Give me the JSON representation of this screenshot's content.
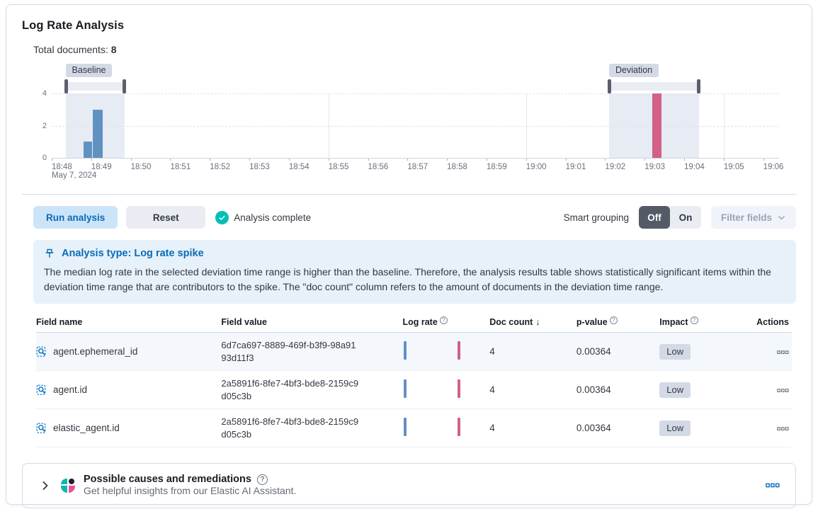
{
  "colors": {
    "accent": "#0071C2",
    "success": "#00BFB3",
    "baseline_bar": "#6092C0",
    "deviation_bar": "#D36086"
  },
  "header": {
    "title": "Log Rate Analysis",
    "total_documents_label": "Total documents:",
    "total_documents_value": "8"
  },
  "chart_data": {
    "type": "bar",
    "title": "Log rate document count histogram",
    "date_label": "May 7, 2024",
    "xticks": [
      "18:48",
      "18:49",
      "18:50",
      "18:51",
      "18:52",
      "18:53",
      "18:54",
      "18:55",
      "18:56",
      "18:57",
      "18:58",
      "18:59",
      "19:00",
      "19:01",
      "19:02",
      "19:03",
      "19:04",
      "19:05",
      "19:06"
    ],
    "x_domain_minutes": 18.4,
    "ylim": [
      0,
      4
    ],
    "yticks": [
      0,
      2,
      4
    ],
    "vgrid_minutes": [
      7,
      12,
      17
    ],
    "baseline": {
      "label": "Baseline",
      "from_min": 0.35,
      "to_min": 1.85
    },
    "deviation": {
      "label": "Deviation",
      "from_min": 14.1,
      "to_min": 16.37
    },
    "bars": [
      {
        "t": 0.8,
        "w": 0.22,
        "count": 1,
        "series": "baseline"
      },
      {
        "t": 1.04,
        "w": 0.25,
        "count": 3,
        "series": "baseline"
      },
      {
        "t": 15.2,
        "w": 0.22,
        "count": 4,
        "series": "deviation"
      }
    ]
  },
  "controls": {
    "run": "Run analysis",
    "reset": "Reset",
    "status": "Analysis complete",
    "smart_grouping_label": "Smart grouping",
    "off": "Off",
    "on": "On",
    "filter_fields": "Filter fields"
  },
  "callout": {
    "title": "Analysis type: Log rate spike",
    "body": "The median log rate in the selected deviation time range is higher than the baseline. Therefore, the analysis results table shows statistically significant items within the deviation time range that are contributors to the spike. The \"doc count\" column refers to the amount of documents in the deviation time range."
  },
  "table": {
    "columns": [
      {
        "label": "Field name"
      },
      {
        "label": "Field value"
      },
      {
        "label": "Log rate"
      },
      {
        "label": "Doc count"
      },
      {
        "label": "p-value"
      },
      {
        "label": "Impact"
      },
      {
        "label": "Actions"
      }
    ],
    "rows": [
      {
        "field_name": "agent.ephemeral_id",
        "field_value": "6d7ca697-8889-469f-b3f9-98a9193d11f3",
        "doc_count": "4",
        "p_value": "0.00364",
        "impact": "Low"
      },
      {
        "field_name": "agent.id",
        "field_value": "2a5891f6-8fe7-4bf3-bde8-2159c9d05c3b",
        "doc_count": "4",
        "p_value": "0.00364",
        "impact": "Low"
      },
      {
        "field_name": "elastic_agent.id",
        "field_value": "2a5891f6-8fe7-4bf3-bde8-2159c9d05c3b",
        "doc_count": "4",
        "p_value": "0.00364",
        "impact": "Low"
      }
    ]
  },
  "causes": {
    "title": "Possible causes and remediations",
    "subtitle": "Get helpful insights from our Elastic AI Assistant."
  }
}
